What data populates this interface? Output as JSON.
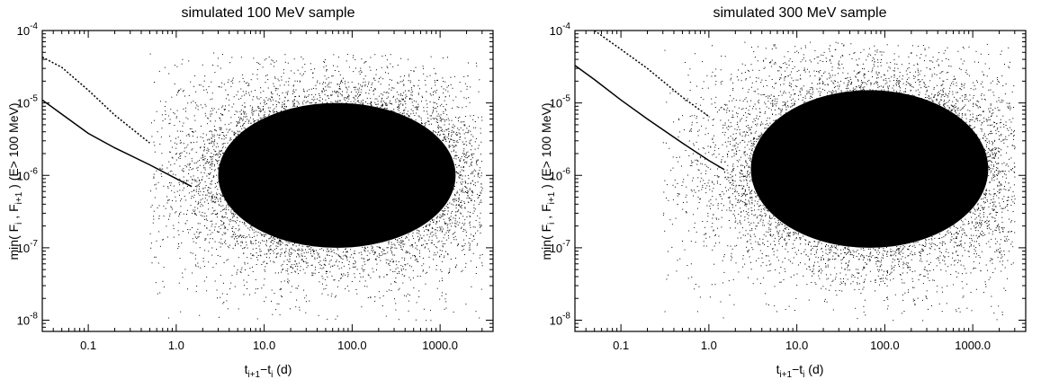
{
  "chart_data": [
    {
      "type": "scatter",
      "title": "simulated 100 MeV sample",
      "xlabel": "t_{i+1}−t_i (d)",
      "ylabel": "min( F_i , F_{i+1} ) (E> 100 MeV)",
      "x_scale": "log",
      "y_scale": "log",
      "xlim": [
        0.03,
        4000
      ],
      "ylim": [
        7e-09,
        0.0001
      ],
      "x_ticks": [
        {
          "value": 0.1,
          "label": "0.1"
        },
        {
          "value": 1,
          "label": "1.0"
        },
        {
          "value": 10,
          "label": "10.0"
        },
        {
          "value": 100,
          "label": "100.0"
        },
        {
          "value": 1000,
          "label": "1000.0"
        }
      ],
      "y_ticks": [
        {
          "value": 1e-08,
          "label": "10^-8"
        },
        {
          "value": 1e-07,
          "label": "10^-7"
        },
        {
          "value": 1e-06,
          "label": "10^-6"
        },
        {
          "value": 1e-05,
          "label": "10^-5"
        },
        {
          "value": 0.0001,
          "label": "10^-4"
        }
      ],
      "grid": false,
      "series": [
        {
          "style": "dotted",
          "x": [
            0.03,
            0.05,
            0.1,
            0.2,
            0.5
          ],
          "y": [
            4.3e-05,
            3.1e-05,
            1.5e-05,
            6.8e-06,
            2.8e-06
          ]
        },
        {
          "style": "solid",
          "x": [
            0.03,
            0.05,
            0.1,
            0.2,
            0.5,
            1.0,
            1.5
          ],
          "y": [
            1.1e-05,
            7e-06,
            3.8e-06,
            2.4e-06,
            1.4e-06,
            9e-07,
            7e-07
          ]
        }
      ],
      "scatter_density": {
        "x_range": [
          0.5,
          3000
        ],
        "y_range": [
          1e-08,
          5e-05
        ],
        "core_x": [
          3,
          1500
        ],
        "core_y": [
          1e-07,
          1e-05
        ]
      }
    },
    {
      "type": "scatter",
      "title": "simulated 300 MeV sample",
      "xlabel": "t_{i+1}−t_i (d)",
      "ylabel": "min( F_i , F_{i+1} ) (E> 100 MeV)",
      "x_scale": "log",
      "y_scale": "log",
      "xlim": [
        0.03,
        4000
      ],
      "ylim": [
        7e-09,
        0.0001
      ],
      "x_ticks": [
        {
          "value": 0.1,
          "label": "0.1"
        },
        {
          "value": 1,
          "label": "1.0"
        },
        {
          "value": 10,
          "label": "10.0"
        },
        {
          "value": 100,
          "label": "100.0"
        },
        {
          "value": 1000,
          "label": "1000.0"
        }
      ],
      "y_ticks": [
        {
          "value": 1e-08,
          "label": "10^-8"
        },
        {
          "value": 1e-07,
          "label": "10^-7"
        },
        {
          "value": 1e-06,
          "label": "10^-6"
        },
        {
          "value": 1e-05,
          "label": "10^-5"
        },
        {
          "value": 0.0001,
          "label": "10^-4"
        }
      ],
      "grid": false,
      "series": [
        {
          "style": "dotted",
          "x": [
            0.05,
            0.1,
            0.2,
            0.5,
            1.0
          ],
          "y": [
            0.0001,
            5.5e-05,
            3e-05,
            1.2e-05,
            6.5e-06
          ]
        },
        {
          "style": "solid",
          "x": [
            0.03,
            0.05,
            0.1,
            0.2,
            0.5,
            1.0,
            1.5
          ],
          "y": [
            3.3e-05,
            2.1e-05,
            1.1e-05,
            6e-06,
            2.8e-06,
            1.6e-06,
            1.2e-06
          ]
        }
      ],
      "scatter_density": {
        "x_range": [
          0.3,
          3000
        ],
        "y_range": [
          1e-08,
          7e-05
        ],
        "core_x": [
          3,
          1500
        ],
        "core_y": [
          1e-07,
          1.5e-05
        ]
      }
    }
  ]
}
